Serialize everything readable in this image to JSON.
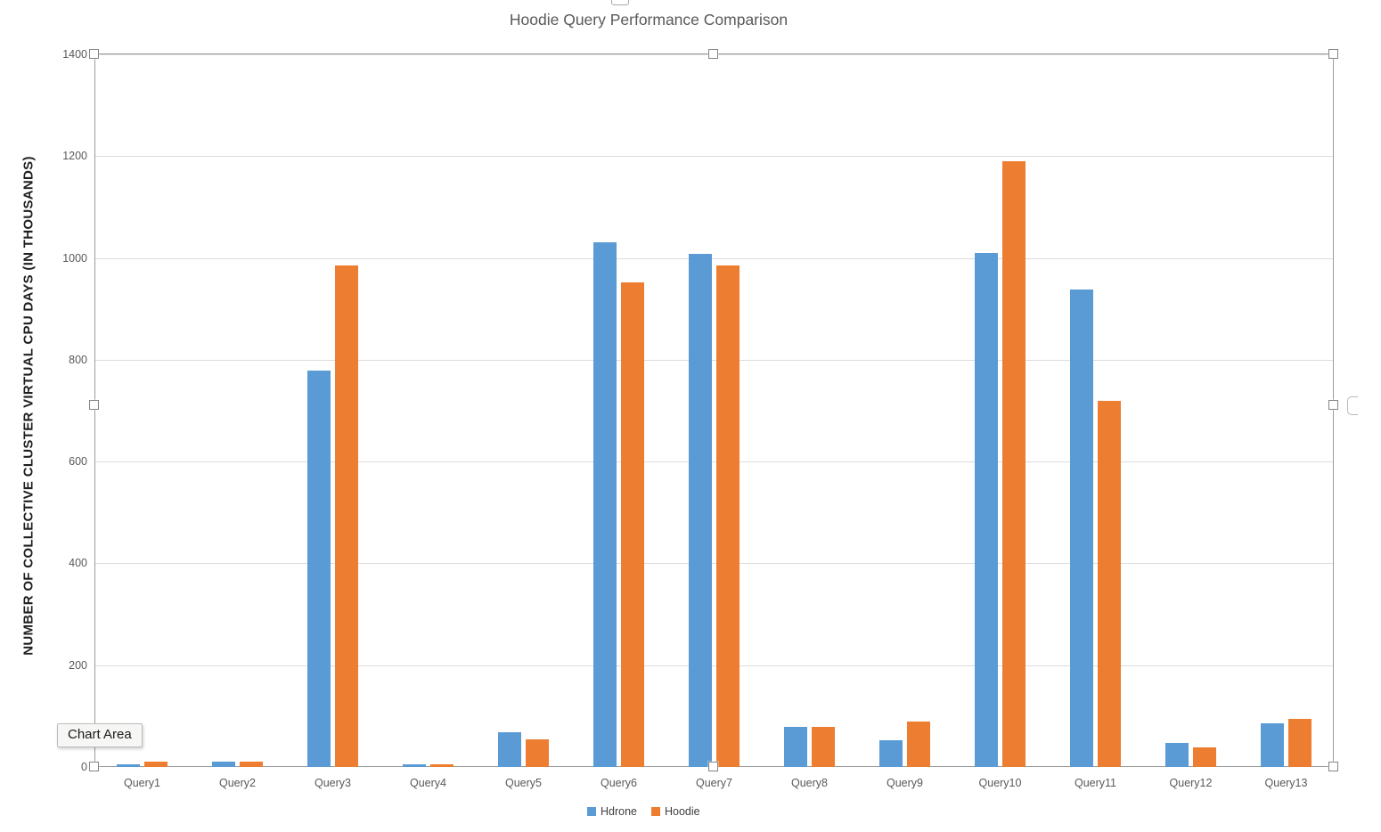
{
  "title": "Hoodie Query Performance Comparison",
  "tooltip": {
    "label": "Chart Area"
  },
  "colors": {
    "hdrone_blue": "#5B9BD5",
    "hoodie_orange": "#ED7D31",
    "gridline": "#dcdcdc",
    "axis_text": "#595959",
    "title_text": "#595959"
  },
  "chart_data": {
    "type": "bar",
    "title": "Hoodie Query Performance Comparison",
    "xlabel": "",
    "ylabel": "NUMBER OF COLLECTIVE CLUSTER VIRTUAL CPU DAYS (IN THOUSANDS)",
    "ylim": [
      0,
      1400
    ],
    "yticks": [
      0,
      200,
      400,
      600,
      800,
      1000,
      1200,
      1400
    ],
    "grid": true,
    "legend_position": "bottom",
    "categories": [
      "Query1",
      "Query2",
      "Query3",
      "Query4",
      "Query5",
      "Query6",
      "Query7",
      "Query8",
      "Query9",
      "Query10",
      "Query11",
      "Query12",
      "Query13"
    ],
    "series": [
      {
        "name": "Hdrone",
        "color": "#5B9BD5",
        "values": [
          6,
          10,
          778,
          5,
          68,
          1030,
          1008,
          79,
          53,
          1010,
          938,
          47,
          86
        ]
      },
      {
        "name": "Hoodie",
        "color": "#ED7D31",
        "values": [
          11,
          10,
          986,
          6,
          55,
          952,
          986,
          79,
          90,
          1190,
          720,
          39,
          95
        ]
      }
    ]
  }
}
